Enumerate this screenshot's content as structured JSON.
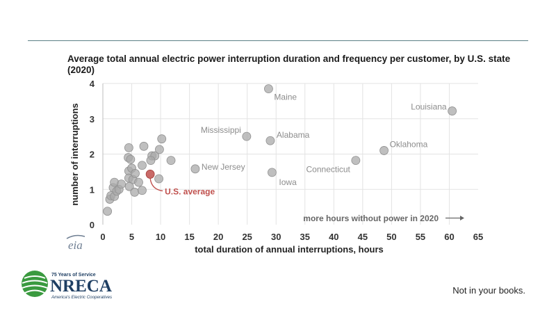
{
  "page": {
    "footer_note": "Not in your books."
  },
  "logo": {
    "tagline_top": "75 Years of Service",
    "wordmark": "NRECA",
    "tagline_bottom": "America's Electric Cooperatives",
    "colors": {
      "green": "#3a9a3f",
      "navy": "#1f3f63"
    }
  },
  "source_mark": "eia",
  "chart_data": {
    "type": "scatter",
    "title": "Average total annual electric power interruption duration and frequency per customer, by U.S. state (2020)",
    "xlabel": "total duration of annual interruptions, hours",
    "ylabel": "number of interruptions",
    "xlim": [
      0,
      65
    ],
    "ylim": [
      0,
      4
    ],
    "x_ticks": [
      0,
      5,
      10,
      15,
      20,
      25,
      30,
      35,
      40,
      45,
      50,
      55,
      60,
      65
    ],
    "y_ticks": [
      0,
      1,
      2,
      3,
      4
    ],
    "grid": true,
    "annotation": "more hours without power in 2020",
    "colors": {
      "point": "#a9a9a9",
      "highlight": "#c0504d",
      "label": "#8c8c8c",
      "highlight_label": "#c0504d"
    },
    "series": [
      {
        "points": [
          {
            "x": 28.7,
            "y": 3.85,
            "label": "Maine"
          },
          {
            "x": 60.5,
            "y": 3.22,
            "label": "Louisiana"
          },
          {
            "x": 24.9,
            "y": 2.5,
            "label": "Mississippi"
          },
          {
            "x": 29.0,
            "y": 2.38,
            "label": "Alabama"
          },
          {
            "x": 48.7,
            "y": 2.1,
            "label": "Oklahoma"
          },
          {
            "x": 43.8,
            "y": 1.82,
            "label": "Connecticut"
          },
          {
            "x": 16.0,
            "y": 1.58,
            "label": "New Jersey"
          },
          {
            "x": 29.3,
            "y": 1.48,
            "label": "Iowa"
          },
          {
            "x": 0.8,
            "y": 0.38
          },
          {
            "x": 1.2,
            "y": 0.72
          },
          {
            "x": 1.4,
            "y": 0.82
          },
          {
            "x": 2.0,
            "y": 0.8
          },
          {
            "x": 1.8,
            "y": 1.05
          },
          {
            "x": 2.4,
            "y": 0.95
          },
          {
            "x": 2.0,
            "y": 1.2
          },
          {
            "x": 2.8,
            "y": 1.0
          },
          {
            "x": 3.2,
            "y": 1.15
          },
          {
            "x": 4.5,
            "y": 2.18
          },
          {
            "x": 4.4,
            "y": 1.9
          },
          {
            "x": 4.8,
            "y": 1.85
          },
          {
            "x": 4.5,
            "y": 1.52
          },
          {
            "x": 5.0,
            "y": 1.6
          },
          {
            "x": 4.5,
            "y": 1.32
          },
          {
            "x": 5.2,
            "y": 1.28
          },
          {
            "x": 4.6,
            "y": 1.08
          },
          {
            "x": 5.5,
            "y": 0.92
          },
          {
            "x": 5.6,
            "y": 1.45
          },
          {
            "x": 6.2,
            "y": 1.2
          },
          {
            "x": 6.8,
            "y": 1.68
          },
          {
            "x": 6.8,
            "y": 0.97
          },
          {
            "x": 7.1,
            "y": 2.22
          },
          {
            "x": 8.5,
            "y": 1.95
          },
          {
            "x": 9.0,
            "y": 1.95
          },
          {
            "x": 8.3,
            "y": 1.82
          },
          {
            "x": 9.8,
            "y": 2.13
          },
          {
            "x": 10.2,
            "y": 2.43
          },
          {
            "x": 11.8,
            "y": 1.82
          },
          {
            "x": 9.7,
            "y": 1.3
          }
        ]
      },
      {
        "name": "U.S. average",
        "points": [
          {
            "x": 8.2,
            "y": 1.43,
            "label": "U.S. average"
          }
        ]
      }
    ]
  }
}
